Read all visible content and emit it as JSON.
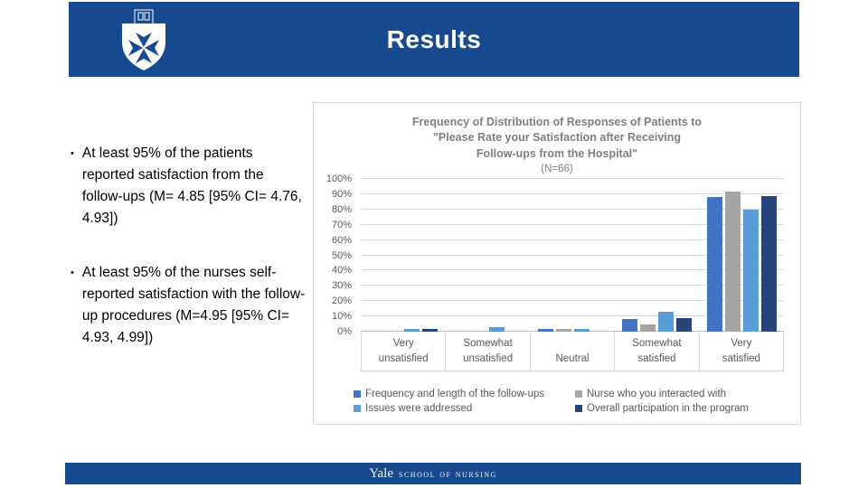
{
  "header": {
    "title": "Results"
  },
  "bullets": [
    {
      "text": "At least 95% of the patients reported satisfaction from the follow-ups (M= 4.85 [95% CI= 4.76, 4.93])"
    },
    {
      "text": "At least 95% of the nurses self-reported satisfaction with the follow-up procedures (M=4.95 [95% CI= 4.93, 4.99])"
    }
  ],
  "chart_data": {
    "type": "bar",
    "title_lines": [
      "Frequency of Distribution of Responses of Patients to",
      "\"Please Rate your Satisfaction after Receiving",
      "Follow-ups from the Hospital\""
    ],
    "subtitle": "(N=66)",
    "categories": [
      "Very unsatisfied",
      "Somewhat unsatisfied",
      "Neutral",
      "Somewhat satisfied",
      "Very satisfied"
    ],
    "series": [
      {
        "name": "Frequency and length of the follow-ups",
        "color": "#4472C4",
        "values": [
          0,
          0,
          2,
          8,
          88
        ]
      },
      {
        "name": "Nurse who you interacted with",
        "color": "#A5A5A5",
        "values": [
          0,
          0,
          2,
          5,
          92
        ]
      },
      {
        "name": "Issues were addressed",
        "color": "#5B9BD5",
        "values": [
          2,
          3,
          2,
          13,
          80
        ]
      },
      {
        "name": "Overall participation in the program",
        "color": "#264478",
        "values": [
          2,
          0,
          0,
          9,
          89
        ]
      }
    ],
    "ylim": [
      0,
      100
    ],
    "ytick_step": 10,
    "ytick_labels": [
      "0%",
      "10%",
      "20%",
      "30%",
      "40%",
      "50%",
      "60%",
      "70%",
      "80%",
      "90%",
      "100%"
    ],
    "xlabel": "",
    "ylabel": "",
    "grid": true,
    "legend_position": "bottom"
  },
  "footer": {
    "brand": "Yale",
    "subbrand": "school of nursing"
  },
  "colors": {
    "header_bar": "#174A8F",
    "footer_bar": "#174A8F",
    "chart_border": "#D9D9D9",
    "title_gray": "#7F7F7F",
    "axis_text_gray": "#595959"
  }
}
